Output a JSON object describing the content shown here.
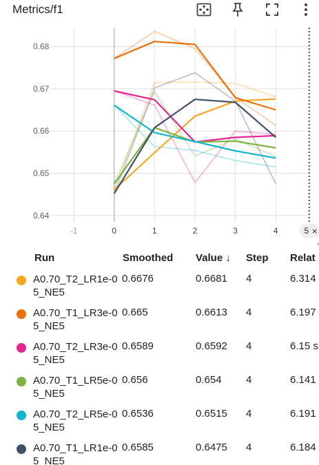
{
  "header": {
    "title": "Metrics/f1",
    "icons": [
      "fit-domain-icon",
      "pin-icon",
      "fullscreen-icon",
      "more-vert-icon"
    ]
  },
  "chart_data": {
    "type": "line",
    "x_ticks": [
      "-1",
      "0",
      "1",
      "2",
      "3",
      "4"
    ],
    "y_ticks": [
      "0.64",
      "0.65",
      "0.66",
      "0.67",
      "0.68"
    ],
    "xlim": [
      -1.6,
      4.85
    ],
    "ylim": [
      0.6385,
      0.6845
    ],
    "step_marker": {
      "x": 5,
      "label": "5"
    },
    "series": [
      {
        "name": "A0.70_T2_LR1e-05_NE5",
        "color": "#f5a623",
        "x": [
          0,
          1,
          2,
          3,
          4
        ],
        "values": [
          0.6461,
          0.6715,
          0.6716,
          0.6713,
          0.6681
        ],
        "smoothed": [
          0.6461,
          0.6549,
          0.6635,
          0.6671,
          0.6676
        ]
      },
      {
        "name": "A0.70_T1_LR3e-05_NE5",
        "color": "#e8710a",
        "x": [
          0,
          1,
          2,
          3,
          4
        ],
        "values": [
          0.6772,
          0.6836,
          0.6795,
          0.668,
          0.6613
        ],
        "smoothed": [
          0.6772,
          0.6812,
          0.6805,
          0.6679,
          0.665
        ]
      },
      {
        "name": "A0.70_T2_LR3e-05_NE5",
        "color": "#e52592",
        "x": [
          0,
          1,
          2,
          3,
          4
        ],
        "values": [
          0.6695,
          0.6661,
          0.6478,
          0.66,
          0.6592
        ],
        "smoothed": [
          0.6695,
          0.6674,
          0.6574,
          0.6585,
          0.6589
        ]
      },
      {
        "name": "A0.70_T1_LR5e-05_NE5",
        "color": "#7cb342",
        "x": [
          0,
          1,
          2,
          3,
          4
        ],
        "values": [
          0.6475,
          0.6693,
          0.6541,
          0.6581,
          0.654
        ],
        "smoothed": [
          0.6475,
          0.6608,
          0.6574,
          0.6576,
          0.656
        ]
      },
      {
        "name": "A0.70_T2_LR5e-05_NE5",
        "color": "#12b5cb",
        "x": [
          0,
          1,
          2,
          3,
          4
        ],
        "values": [
          0.6661,
          0.6563,
          0.6554,
          0.653,
          0.6515
        ],
        "smoothed": [
          0.6661,
          0.6596,
          0.6575,
          0.6553,
          0.6536
        ]
      },
      {
        "name": "A0.70_T1_LR1e-05_NE5",
        "color": "#425066",
        "x": [
          0,
          1,
          2,
          3,
          4
        ],
        "values": [
          0.6452,
          0.6702,
          0.6738,
          0.6671,
          0.6475
        ],
        "smoothed": [
          0.6452,
          0.6608,
          0.6675,
          0.6668,
          0.6585
        ]
      }
    ]
  },
  "table": {
    "columns": {
      "run": "Run",
      "smoothed": "Smoothed",
      "value": "Value",
      "sort_icon": "↓",
      "step": "Step",
      "relative": "Relat"
    },
    "rows": [
      {
        "color": "#f5a623",
        "run": "A0.70_T2_LR1e-05_NE5",
        "smoothed": "0.6676",
        "value": "0.6681",
        "step": "4",
        "relative": "6.314"
      },
      {
        "color": "#e8710a",
        "run": "A0.70_T1_LR3e-05_NE5",
        "smoothed": "0.665",
        "value": "0.6613",
        "step": "4",
        "relative": "6.197"
      },
      {
        "color": "#e52592",
        "run": "A0.70_T2_LR3e-05_NE5",
        "smoothed": "0.6589",
        "value": "0.6592",
        "step": "4",
        "relative": "6.15 s"
      },
      {
        "color": "#7cb342",
        "run": "A0.70_T1_LR5e-05_NE5",
        "smoothed": "0.656",
        "value": "0.654",
        "step": "4",
        "relative": "6.141"
      },
      {
        "color": "#12b5cb",
        "run": "A0.70_T2_LR5e-05_NE5",
        "smoothed": "0.6536",
        "value": "0.6515",
        "step": "4",
        "relative": "6.191"
      },
      {
        "color": "#425066",
        "run": "A0.70_T1_LR1e-05_NE5",
        "smoothed": "0.6585",
        "value": "0.6475",
        "step": "4",
        "relative": "6.184"
      }
    ]
  }
}
